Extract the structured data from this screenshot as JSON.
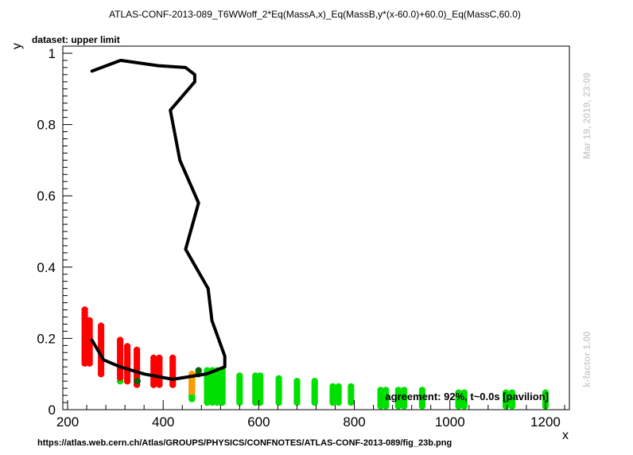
{
  "chart_data": {
    "type": "scatter",
    "title": "ATLAS-CONF-2013-089_T6WWoff_2*Eq(MassA,x)_Eq(MassB,y*(x-60.0)+60.0)_Eq(MassC,60.0)",
    "subtitle": "dataset: upper limit",
    "xlabel": "x",
    "ylabel": "y",
    "xlim": [
      190,
      1250
    ],
    "ylim": [
      0,
      1.02
    ],
    "xticks": [
      200,
      400,
      600,
      800,
      1000,
      1200
    ],
    "yticks": [
      0,
      0.2,
      0.4,
      0.6,
      0.8,
      1
    ],
    "grid": false,
    "legend": "none",
    "colors": {
      "excluded": "#ff0000",
      "allowed": "#00e000",
      "excluded_dark": "#006400",
      "mixed": "#ff9900",
      "contour": "#000000",
      "side_text": "#d0d0d0"
    },
    "excluded_columns": [
      {
        "x": 236,
        "ymin": 0.13,
        "ymax": 0.28
      },
      {
        "x": 246,
        "ymin": 0.13,
        "ymax": 0.25
      },
      {
        "x": 270,
        "ymin": 0.1,
        "ymax": 0.24
      },
      {
        "x": 310,
        "ymin": 0.09,
        "ymax": 0.2
      },
      {
        "x": 325,
        "ymin": 0.08,
        "ymax": 0.18
      },
      {
        "x": 345,
        "ymin": 0.07,
        "ymax": 0.17
      },
      {
        "x": 380,
        "ymin": 0.07,
        "ymax": 0.15
      },
      {
        "x": 392,
        "ymin": 0.07,
        "ymax": 0.15
      },
      {
        "x": 420,
        "ymin": 0.07,
        "ymax": 0.15
      }
    ],
    "allowed_columns": [
      {
        "x": 460,
        "ymin": 0.03,
        "ymax": 0.1
      },
      {
        "x": 492,
        "ymin": 0.02,
        "ymax": 0.11
      },
      {
        "x": 503,
        "ymin": 0.02,
        "ymax": 0.11
      },
      {
        "x": 513,
        "ymin": 0.02,
        "ymax": 0.11
      },
      {
        "x": 524,
        "ymin": 0.02,
        "ymax": 0.11
      },
      {
        "x": 560,
        "ymin": 0.02,
        "ymax": 0.1
      },
      {
        "x": 593,
        "ymin": 0.02,
        "ymax": 0.1
      },
      {
        "x": 603,
        "ymin": 0.02,
        "ymax": 0.1
      },
      {
        "x": 642,
        "ymin": 0.02,
        "ymax": 0.09
      },
      {
        "x": 680,
        "ymin": 0.02,
        "ymax": 0.08
      },
      {
        "x": 717,
        "ymin": 0.02,
        "ymax": 0.08
      },
      {
        "x": 755,
        "ymin": 0.02,
        "ymax": 0.07
      },
      {
        "x": 767,
        "ymin": 0.02,
        "ymax": 0.07
      },
      {
        "x": 793,
        "ymin": 0.02,
        "ymax": 0.07
      },
      {
        "x": 855,
        "ymin": 0.01,
        "ymax": 0.06
      },
      {
        "x": 866,
        "ymin": 0.01,
        "ymax": 0.06
      },
      {
        "x": 892,
        "ymin": 0.01,
        "ymax": 0.06
      },
      {
        "x": 904,
        "ymin": 0.01,
        "ymax": 0.06
      },
      {
        "x": 942,
        "ymin": 0.01,
        "ymax": 0.06
      },
      {
        "x": 1018,
        "ymin": 0.01,
        "ymax": 0.05
      },
      {
        "x": 1030,
        "ymin": 0.01,
        "ymax": 0.05
      },
      {
        "x": 1117,
        "ymin": 0.01,
        "ymax": 0.05
      },
      {
        "x": 1130,
        "ymin": 0.01,
        "ymax": 0.05
      },
      {
        "x": 1200,
        "ymin": 0.01,
        "ymax": 0.05
      }
    ],
    "excluded_dark_points": [
      [
        474,
        0.11
      ],
      [
        474,
        0.1
      ],
      [
        346,
        0.08
      ]
    ],
    "allowed_low_points": [
      [
        310,
        0.08
      ],
      [
        345,
        0.08
      ],
      [
        380,
        0.07
      ],
      [
        420,
        0.07
      ],
      [
        460,
        0.07
      ]
    ],
    "mixed_points": [
      [
        460,
        0.1
      ],
      [
        460,
        0.09
      ],
      [
        460,
        0.08
      ],
      [
        460,
        0.07
      ],
      [
        460,
        0.06
      ],
      [
        460,
        0.05
      ]
    ],
    "contour_line": [
      [
        251,
        0.95
      ],
      [
        311,
        0.98
      ],
      [
        390,
        0.965
      ],
      [
        447,
        0.96
      ],
      [
        466,
        0.94
      ],
      [
        466,
        0.92
      ],
      [
        415,
        0.84
      ],
      [
        435,
        0.7
      ],
      [
        474,
        0.58
      ],
      [
        447,
        0.45
      ],
      [
        494,
        0.34
      ],
      [
        502,
        0.25
      ],
      [
        529,
        0.15
      ],
      [
        529,
        0.12
      ],
      [
        490,
        0.1
      ],
      [
        420,
        0.085
      ],
      [
        360,
        0.1
      ],
      [
        310,
        0.12
      ],
      [
        275,
        0.14
      ],
      [
        251,
        0.195
      ]
    ],
    "annotation": "agreement: 92%, t~0.0s [pavilion]"
  },
  "footer_url": "https://atlas.web.cern.ch/Atlas/GROUPS/PHYSICS/CONFNOTES/ATLAS-CONF-2013-089/fig_23b.png",
  "side_timestamp": "Mar 19, 2019, 23:09",
  "side_kfactor": "k-factor 1.00"
}
